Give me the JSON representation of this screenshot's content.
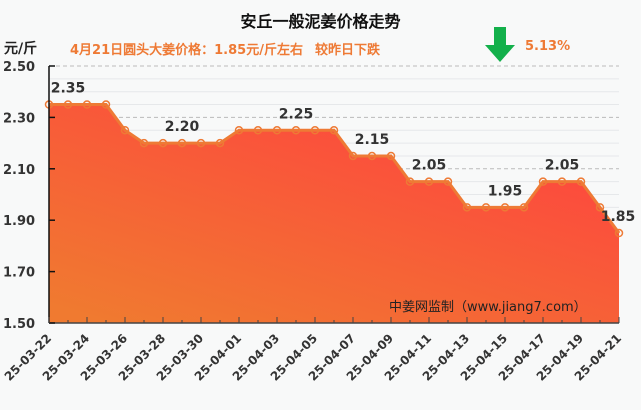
{
  "header": {
    "title": "安丘一般泥姜价格走势",
    "unit": "元/斤",
    "subtitle": "4月21日圆头大姜价格：1.85元/斤左右",
    "change_label": "较昨日下跌",
    "change_pct": "5.13%",
    "change_icon": "down-arrow-icon"
  },
  "watermark": "中姜网监制（www.jiang7.com）",
  "colors": {
    "accent": "#ee7a35",
    "line": "#ee7a35",
    "fill_top": "#ff4040",
    "fill_bottom": "#f07a30",
    "arrow": "#13b04b"
  },
  "chart_data": {
    "type": "area",
    "title": "安丘一般泥姜价格走势",
    "xlabel": "",
    "ylabel": "元/斤",
    "ylim": [
      1.5,
      2.5
    ],
    "yticks": [
      "2.50",
      "2.30",
      "2.10",
      "1.90",
      "1.70",
      "1.50"
    ],
    "grid": true,
    "x": [
      "25-03-22",
      "25-03-23",
      "25-03-24",
      "25-03-25",
      "25-03-26",
      "25-03-27",
      "25-03-28",
      "25-03-29",
      "25-03-30",
      "25-03-31",
      "25-04-01",
      "25-04-02",
      "25-04-03",
      "25-04-04",
      "25-04-05",
      "25-04-06",
      "25-04-07",
      "25-04-08",
      "25-04-09",
      "25-04-10",
      "25-04-11",
      "25-04-12",
      "25-04-13",
      "25-04-14",
      "25-04-15",
      "25-04-16",
      "25-04-17",
      "25-04-18",
      "25-04-19",
      "25-04-20",
      "25-04-21"
    ],
    "xtick_labels": [
      "25-03-22",
      "25-03-24",
      "25-03-26",
      "25-03-28",
      "25-03-30",
      "25-04-01",
      "25-04-03",
      "25-04-05",
      "25-04-07",
      "25-04-09",
      "25-04-11",
      "25-04-13",
      "25-04-15",
      "25-04-17",
      "25-04-19",
      "25-04-21"
    ],
    "values": [
      2.35,
      2.35,
      2.35,
      2.35,
      2.25,
      2.2,
      2.2,
      2.2,
      2.2,
      2.2,
      2.25,
      2.25,
      2.25,
      2.25,
      2.25,
      2.25,
      2.15,
      2.15,
      2.15,
      2.05,
      2.05,
      2.05,
      1.95,
      1.95,
      1.95,
      1.95,
      2.05,
      2.05,
      2.05,
      1.95,
      1.85
    ],
    "annotations": [
      {
        "index": 1,
        "text": "2.35"
      },
      {
        "index": 7,
        "text": "2.20"
      },
      {
        "index": 13,
        "text": "2.25"
      },
      {
        "index": 17,
        "text": "2.15"
      },
      {
        "index": 20,
        "text": "2.05"
      },
      {
        "index": 24,
        "text": "1.95"
      },
      {
        "index": 27,
        "text": "2.05"
      },
      {
        "index": 30,
        "text": "1.85"
      }
    ]
  }
}
